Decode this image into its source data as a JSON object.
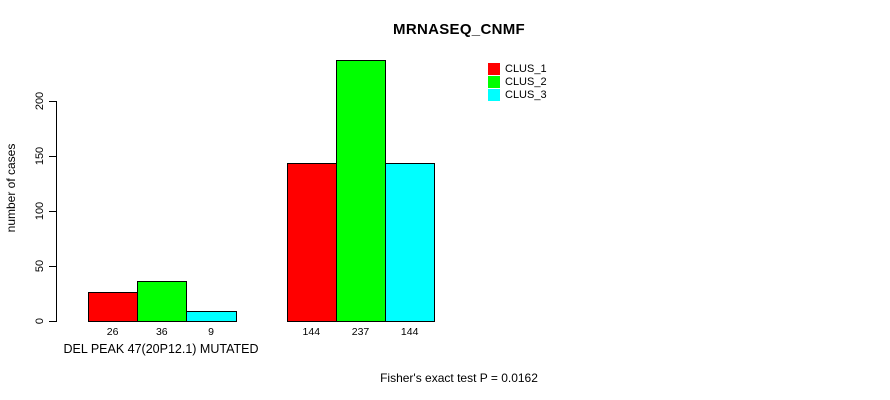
{
  "chart_data": {
    "type": "bar",
    "title": "MRNASEQ_CNMF",
    "ylabel": "number of cases",
    "xlabel": "DEL PEAK 47(20P12.1) MUTATED",
    "annotation": "Fisher's exact test P = 0.0162",
    "yticks": [
      0,
      50,
      100,
      150,
      200
    ],
    "ylim": [
      0,
      240
    ],
    "grid": false,
    "legend_position": "top-right",
    "series": [
      {
        "name": "CLUS_1",
        "color": "#ff0000",
        "values": [
          26,
          144
        ]
      },
      {
        "name": "CLUS_2",
        "color": "#00ff00",
        "values": [
          36,
          237
        ]
      },
      {
        "name": "CLUS_3",
        "color": "#00ffff",
        "values": [
          9,
          144
        ]
      }
    ]
  },
  "colors": {
    "foreground": "#000000",
    "background": "#ffffff"
  }
}
